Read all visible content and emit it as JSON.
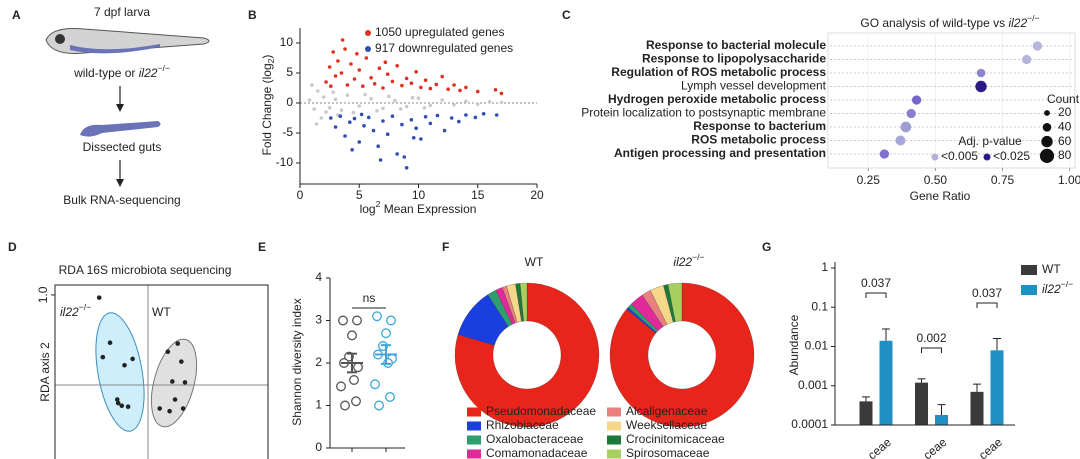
{
  "panel_labels": [
    "A",
    "B",
    "C",
    "D",
    "E",
    "F",
    "G"
  ],
  "diagram": {
    "stage": "7 dpf larva",
    "genotype": [
      "wild-type or ",
      "il22",
      "−/−"
    ],
    "step": "Dissected guts",
    "assay": "Bulk RNA-sequencing"
  },
  "chart_data": [
    {
      "type": "scatter",
      "xlabel": [
        "log",
        "2",
        " Mean Expression"
      ],
      "ylabel": [
        "Fold Change (log",
        "2",
        ")"
      ],
      "xlim": [
        0,
        20
      ],
      "xticks": [
        0,
        5,
        10,
        15,
        20
      ],
      "ylim": [
        -13.5,
        12.5
      ],
      "yticks": [
        -10,
        -5,
        0,
        5,
        10
      ],
      "series": [
        {
          "color": "#c9c9c9",
          "x": [
            0.8,
            1.2,
            1.5,
            1.8,
            2,
            2.5,
            3,
            3.5,
            4,
            5,
            6,
            7,
            8,
            9,
            10,
            11,
            12,
            13,
            14,
            15,
            16,
            17,
            1,
            1.4,
            2.2,
            2.8,
            3.2,
            4.5,
            5.5,
            6.5,
            7.5,
            8.5,
            9.5,
            10.5
          ],
          "values": [
            0.5,
            -1,
            2,
            -2.5,
            1,
            -0.8,
            0.6,
            -1.2,
            1.3,
            -0.5,
            0.7,
            -0.9,
            0.4,
            -0.6,
            0.8,
            -0.4,
            0.5,
            -0.3,
            0.3,
            -0.2,
            0.2,
            0.1,
            3,
            -3.5,
            -1.5,
            1.8,
            -2,
            -1.6,
            1.4,
            -1.3,
            1.1,
            -1,
            0.9,
            -0.8
          ]
        },
        {
          "name": "1050 upregulated genes",
          "color": "#e0301e",
          "x": [
            2.2,
            2.5,
            2.8,
            3,
            3.2,
            3.5,
            3.8,
            4,
            4.3,
            4.6,
            5,
            5.3,
            5.6,
            6,
            6.3,
            6.7,
            7,
            7.4,
            7.8,
            8.2,
            8.6,
            9,
            9.4,
            9.8,
            10.2,
            10.6,
            11,
            11.5,
            12,
            12.5,
            13,
            13.5,
            14,
            15,
            16.5,
            17,
            3.6,
            4.8,
            2.6,
            7.2
          ],
          "values": [
            3.5,
            6,
            8.5,
            4.5,
            7,
            5,
            9,
            3,
            6.5,
            4,
            5.5,
            2.8,
            7.5,
            4.2,
            3.2,
            5.8,
            2.5,
            4.8,
            3.6,
            6.2,
            2.9,
            4.1,
            3.3,
            5.2,
            2.6,
            3.8,
            2.4,
            3.1,
            4.4,
            2.3,
            3,
            2.1,
            2.6,
            1.9,
            2.2,
            1.6,
            10.5,
            8.2,
            2.8,
            6.8
          ]
        },
        {
          "name": "917 downregulated genes",
          "color": "#2f4fb0",
          "x": [
            2.6,
            3,
            3.4,
            3.8,
            4.2,
            4.6,
            5,
            5.4,
            5.8,
            6.2,
            6.6,
            7,
            7.4,
            7.8,
            8.2,
            8.6,
            9,
            9.4,
            9.8,
            10.2,
            10.6,
            11,
            11.6,
            12.2,
            12.8,
            13.4,
            14,
            14.8,
            15.5,
            16.6,
            4.4,
            6.8,
            8.8,
            5.2,
            9.6
          ],
          "values": [
            -2.5,
            -4,
            -2.2,
            -5.5,
            -3.2,
            -2.6,
            -6.5,
            -3.8,
            -2.4,
            -4.6,
            -7.2,
            -3,
            -5.2,
            -2.2,
            -8.5,
            -3.6,
            -10.8,
            -2.8,
            -4.2,
            -6,
            -2.3,
            -3.4,
            -2.1,
            -4.6,
            -2.5,
            -3.1,
            -2,
            -2.4,
            -1.8,
            -2,
            -7.8,
            -9.5,
            -9,
            -1.9,
            -5.8
          ]
        }
      ]
    },
    {
      "type": "dot",
      "title": [
        "GO analysis of wild-type vs ",
        "il22",
        "−/−"
      ],
      "categories": [
        "Response to bacterial molecule",
        "Response to lipopolysaccharide",
        "Regulation of ROS metabolic process",
        "Lymph vessel development",
        "Hydrogen peroxide metabolic process",
        "Protein localization to postsynaptic membrane",
        "Response to bacterium",
        "ROS metabolic process",
        "Antigen processing and presentation"
      ],
      "label_colors": [
        "#1f5d8a",
        "#1f5d8a",
        "#1f5d8a",
        "#222222",
        "#1f5d8a",
        "#222222",
        "#1f5d8a",
        "#1f5d8a",
        "#1f5d8a"
      ],
      "label_bold": [
        true,
        true,
        true,
        false,
        true,
        false,
        true,
        true,
        true
      ],
      "values": [
        0.88,
        0.84,
        0.67,
        0.67,
        0.43,
        0.41,
        0.39,
        0.37,
        0.31
      ],
      "sizes": [
        45,
        45,
        40,
        60,
        45,
        45,
        55,
        50,
        45
      ],
      "colors": [
        "#b8b5dc",
        "#b8b5dc",
        "#8c84cf",
        "#2b1a86",
        "#7566cc",
        "#8a80d0",
        "#a09cd6",
        "#a9a6da",
        "#7d70cf"
      ],
      "xlabel": "Gene Ratio",
      "xlim": [
        0.1,
        1.02
      ],
      "xticks": [
        0.25,
        {
          "value": 0.5,
          "label": "0.50"
        },
        0.75,
        {
          "value": 1,
          "label": "1.00"
        }
      ],
      "size_legend": {
        "title": "Count",
        "values": [
          20,
          40,
          60,
          80
        ]
      },
      "color_legend": {
        "title": "Adj. p-value",
        "labels": [
          "<0.005",
          "<0.025"
        ],
        "colors": [
          "#b3b0da",
          "#2b1a86"
        ]
      }
    },
    {
      "type": "ordination",
      "title": "RDA 16S microbiota sequencing",
      "ylabel": "RDA axis 2",
      "xlim": [
        -1.03,
        1.33
      ],
      "ylim": [
        -0.82,
        1.11
      ],
      "yticks": [
        {
          "value": 1,
          "label": "1.0"
        }
      ],
      "series": [
        {
          "name": "il22",
          "name_sup": "−/−",
          "color": "#222222",
          "x": [
            -0.54,
            -0.42,
            -0.5,
            -0.26,
            -0.34,
            -0.33,
            -0.29,
            -0.22,
            -0.17
          ],
          "values": [
            0.97,
            0.47,
            0.31,
            0.22,
            -0.16,
            -0.2,
            -0.23,
            -0.24,
            0.29
          ]
        },
        {
          "name": "WT",
          "color": "#222222",
          "x": [
            0.22,
            0.33,
            0.37,
            0.27,
            0.41,
            0.3,
            0.13,
            0.39,
            0.24
          ],
          "values": [
            0.37,
            0.46,
            0.26,
            0.04,
            0.03,
            -0.16,
            -0.26,
            -0.26,
            -0.29
          ]
        }
      ]
    },
    {
      "type": "strip",
      "ylabel": "Shannon diversity index",
      "ylim": [
        0,
        4
      ],
      "yticks": [
        0,
        1,
        2,
        3,
        4
      ],
      "annotation": "ns",
      "series": [
        {
          "color": "#555555",
          "values": [
            3.0,
            3.0,
            2.65,
            2.15,
            2.0,
            1.9,
            1.6,
            1.45,
            1.1,
            1.0
          ],
          "mean": 2.0,
          "sem": 0.22
        },
        {
          "color": "#3aa7d6",
          "values": [
            3.1,
            3.0,
            2.7,
            2.4,
            2.2,
            2.1,
            2.0,
            1.5,
            1.2,
            1.0
          ],
          "mean": 2.2,
          "sem": 0.22
        }
      ]
    },
    {
      "type": "donut",
      "categories": [
        "Pseudomonadaceae",
        "Rhizobiaceae",
        "Oxalobacteraceae",
        "Comamonadaceae",
        "Alcaligenaceae",
        "Weeksellaceae",
        "Crocinitomicaceae",
        "Spirosomaceae"
      ],
      "colors": [
        "#e8251b",
        "#1a3ee0",
        "#2e9e6e",
        "#e02a9b",
        "#e88080",
        "#f5d78a",
        "#1b7a3a",
        "#a8d060"
      ],
      "series": [
        {
          "name": "WT",
          "values": [
            78,
            11,
            2,
            1.5,
            1,
            2,
            1,
            1.5
          ]
        },
        {
          "name": "il22",
          "name_sup": "−/−",
          "values": [
            83,
            0.5,
            1,
            3,
            2,
            3,
            1,
            3
          ]
        }
      ]
    },
    {
      "type": "bar",
      "log_y": true,
      "ylabel": "Abundance",
      "ylim": [
        0.0001,
        1
      ],
      "yticks": [
        0.0001,
        0.001,
        0.01,
        0.1,
        1
      ],
      "categories": [
        "ceae",
        "ceae",
        "ceae"
      ],
      "annotations": [
        "0.037",
        "0.002",
        "0.037"
      ],
      "series": [
        {
          "name": "WT",
          "color": "#3a3a3a",
          "values": [
            0.0004,
            0.0012,
            0.0007
          ],
          "errors": [
            0.00012,
            0.0003,
            0.0004
          ]
        },
        {
          "name": "il22",
          "name_sup": "−/−",
          "color": "#1f8fc4",
          "values": [
            0.014,
            0.00018,
            0.008
          ],
          "errors": [
            0.014,
            0.00015,
            0.008
          ]
        }
      ]
    }
  ]
}
